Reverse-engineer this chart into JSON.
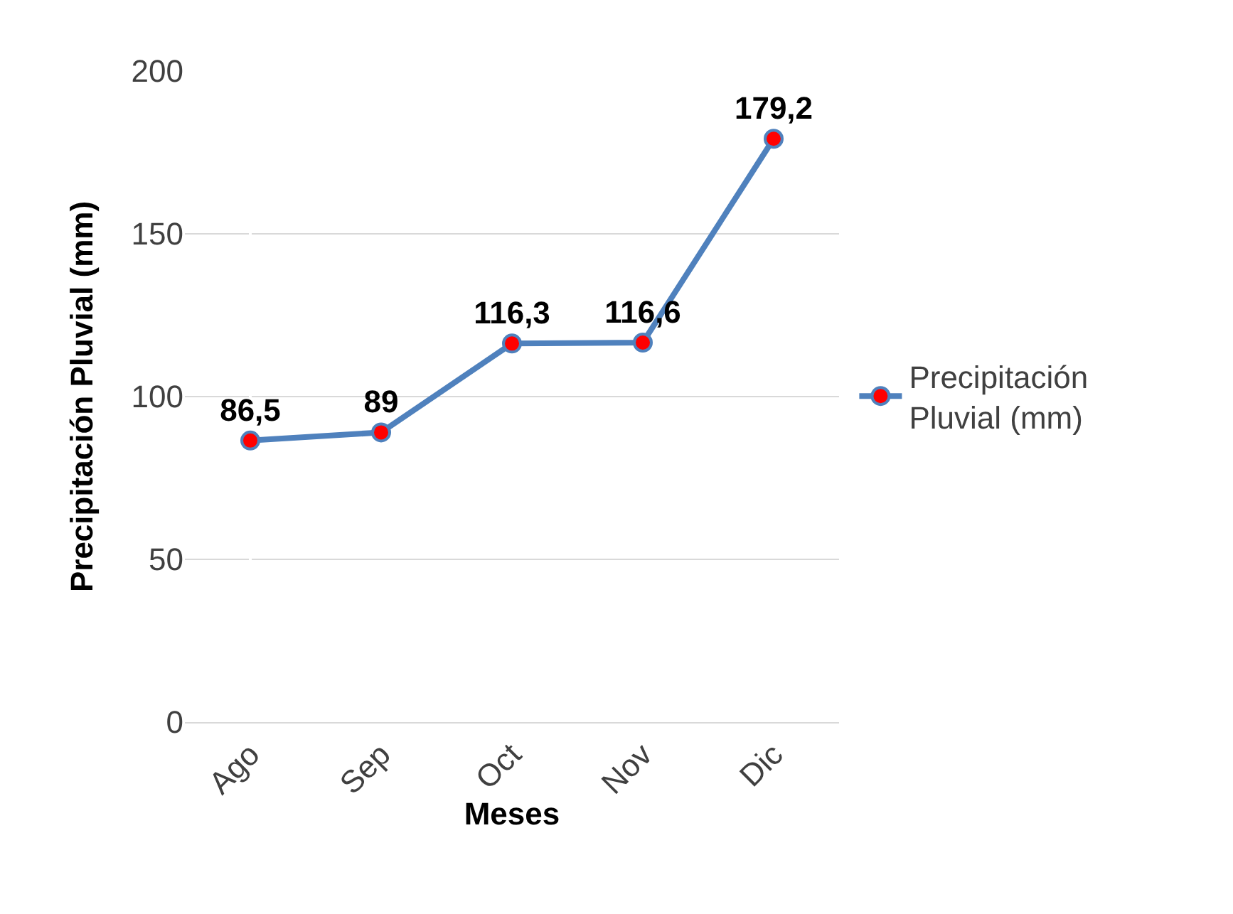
{
  "chart_data": {
    "type": "line",
    "xlabel": "Meses",
    "ylabel": "Precipitación Pluvial (mm)",
    "categories": [
      "Ago",
      "Sep",
      "Oct",
      "Nov",
      "Dic"
    ],
    "series": [
      {
        "name": "Precipitación Pluvial (mm)",
        "color": "#4f81bd",
        "colors": [
          "#ff0000",
          "#ff0000",
          "#ff0000",
          "#ff0000",
          "#ff0000"
        ],
        "values": [
          86.5,
          89,
          116.3,
          116.6,
          179.2
        ],
        "value_labels": [
          "86,5",
          "89",
          "116,3",
          "116,6",
          "179,2"
        ]
      }
    ],
    "ylim": [
      0,
      200
    ],
    "yticks": [
      0,
      50,
      100,
      150,
      200
    ],
    "grid": "y",
    "legend": "right",
    "marker": "circle",
    "line_style": "solid"
  }
}
